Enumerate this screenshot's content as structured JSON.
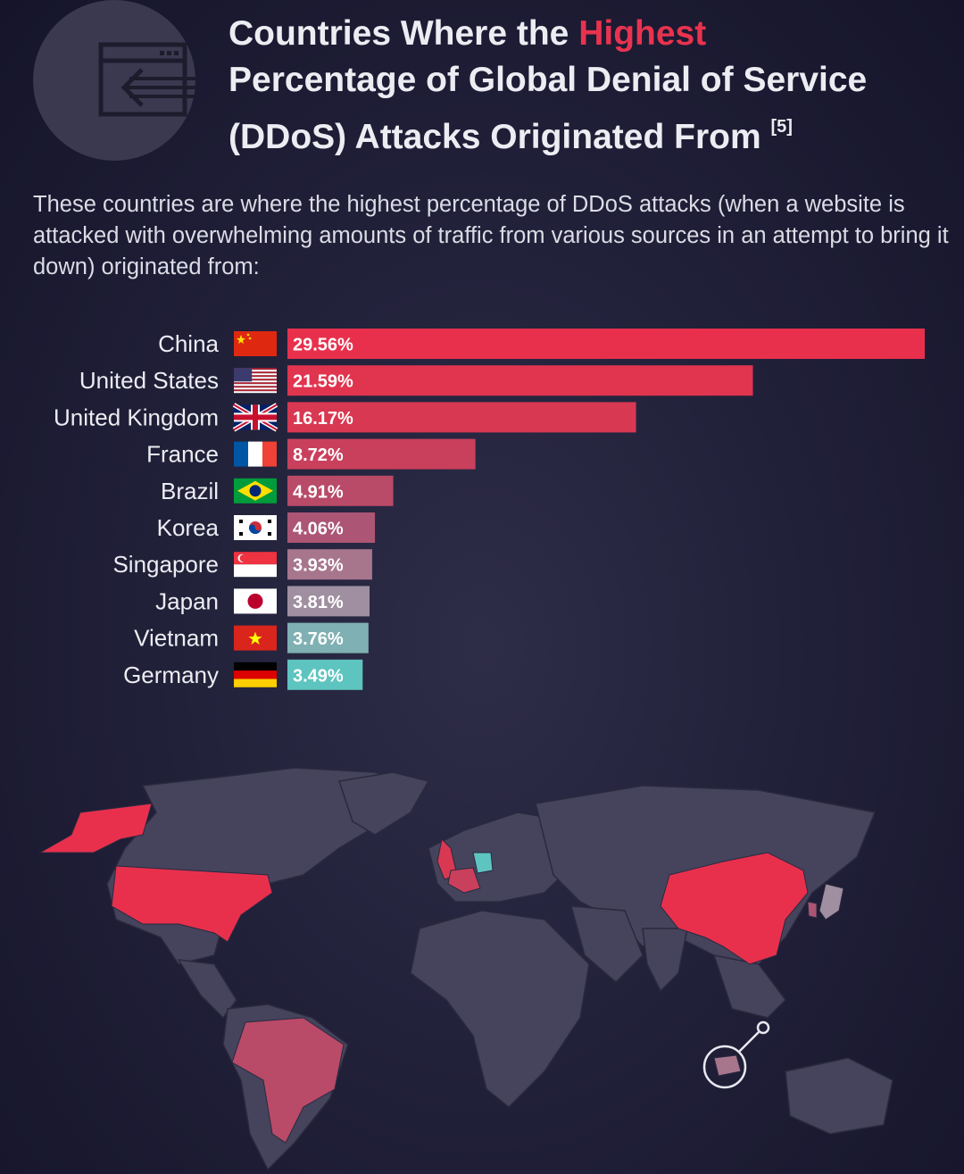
{
  "header": {
    "title_part1": "Countries Where the ",
    "title_highlight": "Highest",
    "title_part2": "Percentage of Global Denial of Service (DDoS) Attacks Originated From",
    "title_ref": "[5]",
    "subtitle": "These countries are where the highest percentage of DDoS attacks (when a website is attacked with overwhelming amounts of traffic from various sources in an attempt to bring it down) originated from:"
  },
  "colors": {
    "background": "#22213a",
    "highlight": "#e8334f",
    "map_land": "#45445c",
    "map_border": "#2a293f"
  },
  "chart_data": {
    "type": "bar",
    "orientation": "horizontal",
    "categories": [
      "China",
      "United States",
      "United Kingdom",
      "France",
      "Brazil",
      "Korea",
      "Singapore",
      "Japan",
      "Vietnam",
      "Germany"
    ],
    "values": [
      29.56,
      21.59,
      16.17,
      8.72,
      4.91,
      4.06,
      3.93,
      3.81,
      3.76,
      3.49
    ],
    "labels": [
      "29.56%",
      "21.59%",
      "16.17%",
      "8.72%",
      "4.91%",
      "4.06%",
      "3.93%",
      "3.81%",
      "3.76%",
      "3.49%"
    ],
    "bar_colors": [
      "#e8304d",
      "#e0344f",
      "#d93852",
      "#c9405d",
      "#b94a68",
      "#ac5574",
      "#a7768d",
      "#9f8fa0",
      "#7fb0b3",
      "#5ec4bf"
    ],
    "flags": [
      "china-flag",
      "united-states-flag",
      "united-kingdom-flag",
      "france-flag",
      "brazil-flag",
      "korea-flag",
      "singapore-flag",
      "japan-flag",
      "vietnam-flag",
      "germany-flag"
    ],
    "xlim": [
      0,
      29.56
    ],
    "title": "",
    "xlabel": "",
    "ylabel": "",
    "grid": false
  },
  "map": {
    "highlighted_regions": [
      {
        "name": "United States",
        "color": "#e8304d"
      },
      {
        "name": "Brazil",
        "color": "#b94a68"
      },
      {
        "name": "United Kingdom",
        "color": "#d93852"
      },
      {
        "name": "France",
        "color": "#c9405d"
      },
      {
        "name": "Germany",
        "color": "#5ec4bf"
      },
      {
        "name": "China",
        "color": "#e8304d"
      },
      {
        "name": "Korea",
        "color": "#ac5574"
      },
      {
        "name": "Japan",
        "color": "#9f8fa0"
      },
      {
        "name": "Singapore",
        "color": "#a7768d"
      }
    ]
  }
}
